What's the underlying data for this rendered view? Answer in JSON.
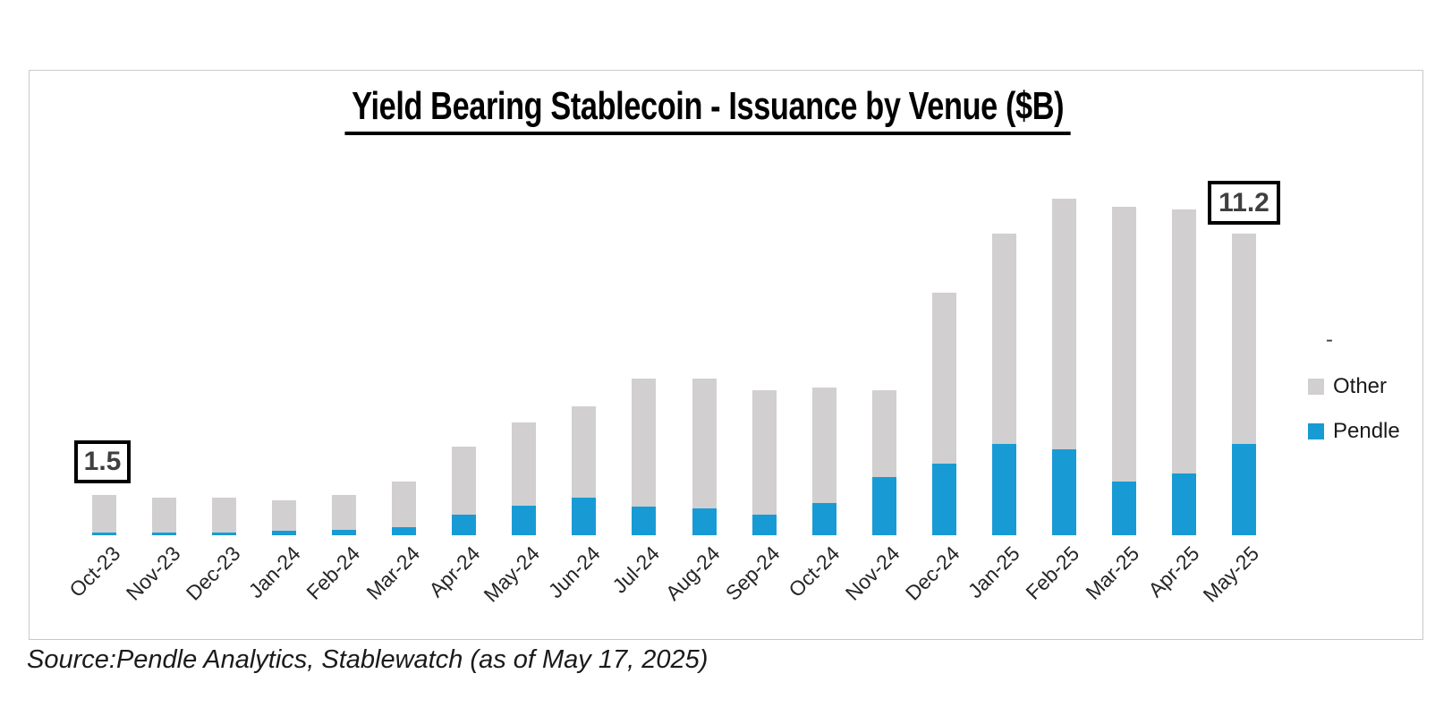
{
  "page": {
    "background": "#ffffff",
    "panel_border_color": "#c9c9c9"
  },
  "chart": {
    "title": "Yield Bearing Stablecoin - Issuance by Venue ($B)",
    "source_note": "Source:Pendle Analytics, Stablewatch (as of May 17, 2025)",
    "annotations": {
      "first_bar_label": "1.5",
      "last_bar_label": "11.2"
    },
    "legend": {
      "placeholder": "-",
      "items": [
        {
          "label": "Other",
          "color": "#d1cfcf"
        },
        {
          "label": "Pendle",
          "color": "#189bd5"
        }
      ]
    }
  },
  "chart_data": {
    "type": "bar",
    "stacked": true,
    "title": "Yield Bearing Stablecoin - Issuance by Venue ($B)",
    "unit": "$B",
    "categories": [
      "Oct-23",
      "Nov-23",
      "Dec-23",
      "Jan-24",
      "Feb-24",
      "Mar-24",
      "Apr-24",
      "May-24",
      "Jun-24",
      "Jul-24",
      "Aug-24",
      "Sep-24",
      "Oct-24",
      "Nov-24",
      "Dec-24",
      "Jan-25",
      "Feb-25",
      "Mar-25",
      "Apr-25",
      "May-25"
    ],
    "series": [
      {
        "name": "Pendle",
        "color": "#189bd5",
        "values": [
          0.1,
          0.1,
          0.1,
          0.15,
          0.2,
          0.3,
          0.75,
          1.1,
          1.4,
          1.05,
          1.0,
          0.75,
          1.2,
          2.15,
          2.65,
          3.4,
          3.2,
          2.0,
          2.3,
          3.4
        ]
      },
      {
        "name": "Other",
        "color": "#d1cfcf",
        "values": [
          1.4,
          1.3,
          1.3,
          1.15,
          1.3,
          1.7,
          2.55,
          3.1,
          3.4,
          4.75,
          4.8,
          4.65,
          4.3,
          3.25,
          6.35,
          7.8,
          9.3,
          10.2,
          9.8,
          7.8
        ]
      }
    ],
    "totals": [
      1.5,
      1.4,
      1.4,
      1.3,
      1.5,
      2.0,
      3.3,
      4.2,
      4.8,
      5.8,
      5.8,
      5.4,
      5.5,
      5.4,
      9.0,
      11.2,
      12.5,
      12.2,
      12.1,
      11.2
    ],
    "annotated_points": [
      {
        "category": "Oct-23",
        "total": 1.5
      },
      {
        "category": "May-25",
        "total": 11.2
      }
    ],
    "ylim": [
      0,
      12.5
    ],
    "grid": false,
    "y_axis_visible": false,
    "legend_position": "right",
    "xlabel": "",
    "ylabel": ""
  }
}
